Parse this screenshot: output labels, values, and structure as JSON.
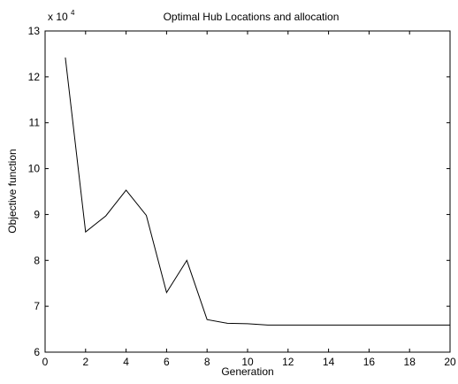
{
  "chart_data": {
    "type": "line",
    "title": "Optimal Hub Locations and allocation",
    "xlabel": "Generation",
    "ylabel": "Objective function",
    "y_multiplier_base": "x 10",
    "y_multiplier_exponent": "4",
    "xlim": [
      0,
      20
    ],
    "ylim": [
      6,
      13
    ],
    "x_ticks": [
      0,
      2,
      4,
      6,
      8,
      10,
      12,
      14,
      16,
      18,
      20
    ],
    "y_ticks": [
      6,
      7,
      8,
      9,
      10,
      11,
      12,
      13
    ],
    "grid": false,
    "legend": "none",
    "line_color": "#000000",
    "series": [
      {
        "x": [
          1,
          2,
          3,
          4,
          5,
          6,
          7,
          8,
          9,
          10,
          11,
          12,
          13,
          14,
          15,
          16,
          17,
          18,
          19,
          20
        ],
        "values": [
          12.42,
          8.62,
          8.97,
          9.53,
          8.98,
          7.3,
          8.0,
          6.71,
          6.63,
          6.62,
          6.59,
          6.59,
          6.59,
          6.59,
          6.59,
          6.59,
          6.59,
          6.59,
          6.59,
          6.59
        ]
      }
    ]
  }
}
